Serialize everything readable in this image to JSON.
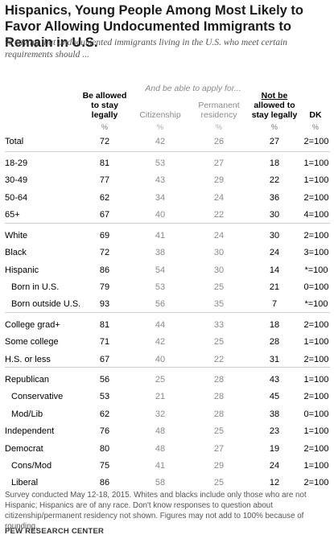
{
  "title": "Hispanics, Young People Among Most Likely to Favor Allowing Undocumented Immigrants to Remain in U.S.",
  "subtitle": "% saying that undocumented immigrants living in the U.S. who meet certain requirements should ...",
  "chart_data": {
    "type": "table",
    "span_header": "And be able to apply for...",
    "columns": [
      {
        "key": "stay",
        "label_lines": [
          "Be allowed",
          "to stay",
          "legally"
        ],
        "unit": "%"
      },
      {
        "key": "citizenship",
        "label_lines": [
          "Citizenship"
        ],
        "unit": "%"
      },
      {
        "key": "permanent",
        "label_lines": [
          "Permanent",
          "residency"
        ],
        "unit": "%"
      },
      {
        "key": "not_stay",
        "label_lines": [
          "Not be",
          "allowed to",
          "stay legally"
        ],
        "unit": "%"
      },
      {
        "key": "dk",
        "label_lines": [
          "DK"
        ],
        "unit": "%"
      }
    ],
    "rows": [
      {
        "label": "Total",
        "values": [
          "72",
          "42",
          "26",
          "27",
          "2=100"
        ]
      },
      {
        "label": "18-29",
        "values": [
          "81",
          "53",
          "27",
          "18",
          "1=100"
        ]
      },
      {
        "label": "30-49",
        "values": [
          "77",
          "43",
          "29",
          "22",
          "1=100"
        ]
      },
      {
        "label": "50-64",
        "values": [
          "62",
          "34",
          "24",
          "36",
          "2=100"
        ]
      },
      {
        "label": "65+",
        "values": [
          "67",
          "40",
          "22",
          "30",
          "4=100"
        ]
      },
      {
        "label": "White",
        "values": [
          "69",
          "41",
          "24",
          "30",
          "2=100"
        ]
      },
      {
        "label": "Black",
        "values": [
          "72",
          "38",
          "30",
          "24",
          "3=100"
        ]
      },
      {
        "label": "Hispanic",
        "values": [
          "86",
          "54",
          "30",
          "14",
          "*=100"
        ]
      },
      {
        "label": "Born in U.S.",
        "values": [
          "79",
          "53",
          "25",
          "21",
          "0=100"
        ]
      },
      {
        "label": "Born outside U.S.",
        "values": [
          "93",
          "56",
          "35",
          "7",
          "*=100"
        ]
      },
      {
        "label": "College grad+",
        "values": [
          "81",
          "44",
          "33",
          "18",
          "2=100"
        ]
      },
      {
        "label": "Some college",
        "values": [
          "71",
          "42",
          "25",
          "28",
          "1=100"
        ]
      },
      {
        "label": "H.S. or less",
        "values": [
          "67",
          "40",
          "22",
          "31",
          "2=100"
        ]
      },
      {
        "label": "Republican",
        "values": [
          "56",
          "25",
          "28",
          "43",
          "1=100"
        ]
      },
      {
        "label": "Conservative",
        "values": [
          "53",
          "21",
          "28",
          "45",
          "2=100"
        ]
      },
      {
        "label": "Mod/Lib",
        "values": [
          "62",
          "32",
          "28",
          "38",
          "0=100"
        ]
      },
      {
        "label": "Independent",
        "values": [
          "76",
          "48",
          "25",
          "23",
          "1=100"
        ]
      },
      {
        "label": "Democrat",
        "values": [
          "80",
          "48",
          "27",
          "19",
          "2=100"
        ]
      },
      {
        "label": "Cons/Mod",
        "values": [
          "75",
          "41",
          "29",
          "24",
          "1=100"
        ]
      },
      {
        "label": "Liberal",
        "values": [
          "86",
          "58",
          "25",
          "12",
          "2=100"
        ]
      }
    ]
  },
  "note": "Survey conducted May 12-18, 2015. Whites and blacks include only those who are not Hispanic; Hispanics are of any race. Don't know responses to question about citizenship/permanent residency not shown. Figures may not add to 100% because of rounding.",
  "source": "PEW RESEARCH CENTER",
  "colors": {
    "dark_text": "#000000",
    "grey_text": "#8a8a8a",
    "rule": "#cccccc"
  }
}
